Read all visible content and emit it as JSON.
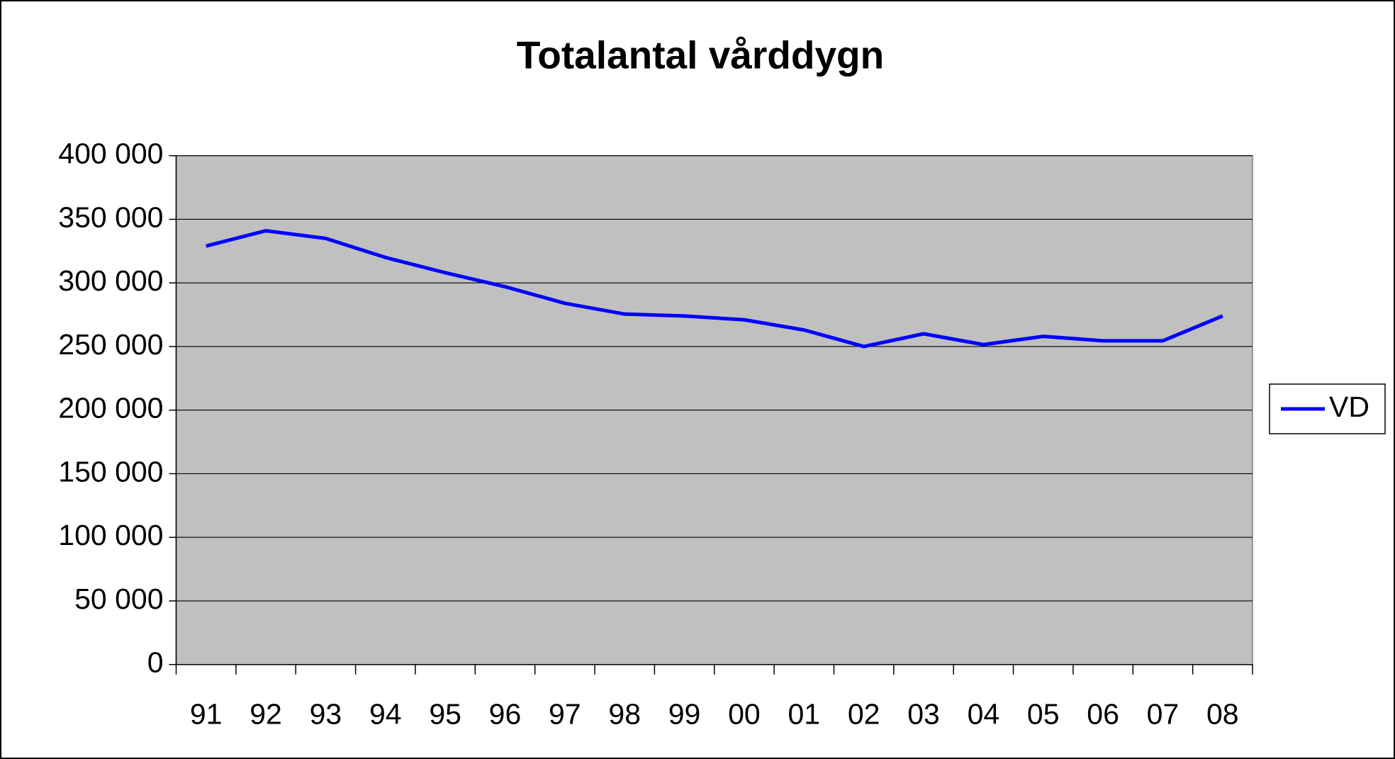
{
  "chart_data": {
    "type": "line",
    "title": "Totalantal vårddygn",
    "categories": [
      "91",
      "92",
      "93",
      "94",
      "95",
      "96",
      "97",
      "98",
      "99",
      "00",
      "01",
      "02",
      "03",
      "04",
      "05",
      "06",
      "07",
      "08"
    ],
    "series": [
      {
        "name": "VD",
        "color": "#0000ff",
        "values": [
          329000,
          341000,
          335000,
          320000,
          308000,
          297000,
          284000,
          275500,
          274000,
          271000,
          263000,
          250000,
          260000,
          251500,
          258000,
          254500,
          254500,
          274000
        ]
      }
    ],
    "ylim": [
      0,
      400000
    ],
    "yticks": [
      {
        "value": 0,
        "label": "0"
      },
      {
        "value": 50000,
        "label": "50 000"
      },
      {
        "value": 100000,
        "label": "100 000"
      },
      {
        "value": 150000,
        "label": "150 000"
      },
      {
        "value": 200000,
        "label": "200 000"
      },
      {
        "value": 250000,
        "label": "250 000"
      },
      {
        "value": 300000,
        "label": "300 000"
      },
      {
        "value": 350000,
        "label": "350 000"
      },
      {
        "value": 400000,
        "label": "400 000"
      }
    ],
    "grid": true,
    "plot_background": "#c0c0c0",
    "legend": "right"
  }
}
